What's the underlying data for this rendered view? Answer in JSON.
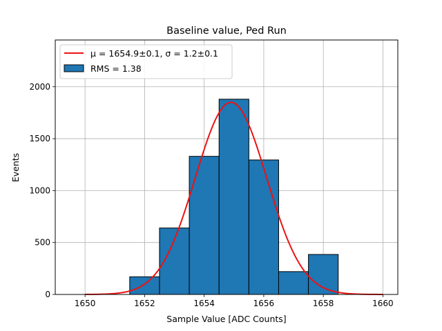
{
  "chart_data": {
    "type": "bar",
    "title": "Baseline value, Ped Run",
    "xlabel": "Sample Value [ADC Counts]",
    "ylabel": "Events",
    "xlim": [
      1649.0,
      1660.5
    ],
    "ylim": [
      0,
      2450
    ],
    "xticks": [
      1650,
      1652,
      1654,
      1656,
      1658,
      1660
    ],
    "yticks": [
      0,
      500,
      1000,
      1500,
      2000
    ],
    "grid": true,
    "legend_position": "top-left",
    "bins": [
      {
        "left": 1651.5,
        "right": 1652.5,
        "value": 170
      },
      {
        "left": 1652.5,
        "right": 1653.5,
        "value": 640
      },
      {
        "left": 1653.5,
        "right": 1654.5,
        "value": 1330
      },
      {
        "left": 1654.5,
        "right": 1655.5,
        "value": 1880
      },
      {
        "left": 1655.5,
        "right": 1656.5,
        "value": 1295
      },
      {
        "left": 1656.5,
        "right": 1657.5,
        "value": 220
      },
      {
        "left": 1657.5,
        "right": 1658.5,
        "value": 385
      }
    ],
    "fit": {
      "mu": 1654.9,
      "sigma": 1.2,
      "amplitude": 1850,
      "x_range": [
        1650,
        1660
      ]
    },
    "legend": [
      {
        "label": "μ = 1654.9±0.1, σ = 1.2±0.1",
        "kind": "line"
      },
      {
        "label": "RMS = 1.38",
        "kind": "patch"
      }
    ],
    "colors": {
      "bar_fill": "#1f77b4",
      "bar_edge": "#000000",
      "fit_line": "#ee1111",
      "grid": "#b0b0b0"
    }
  }
}
